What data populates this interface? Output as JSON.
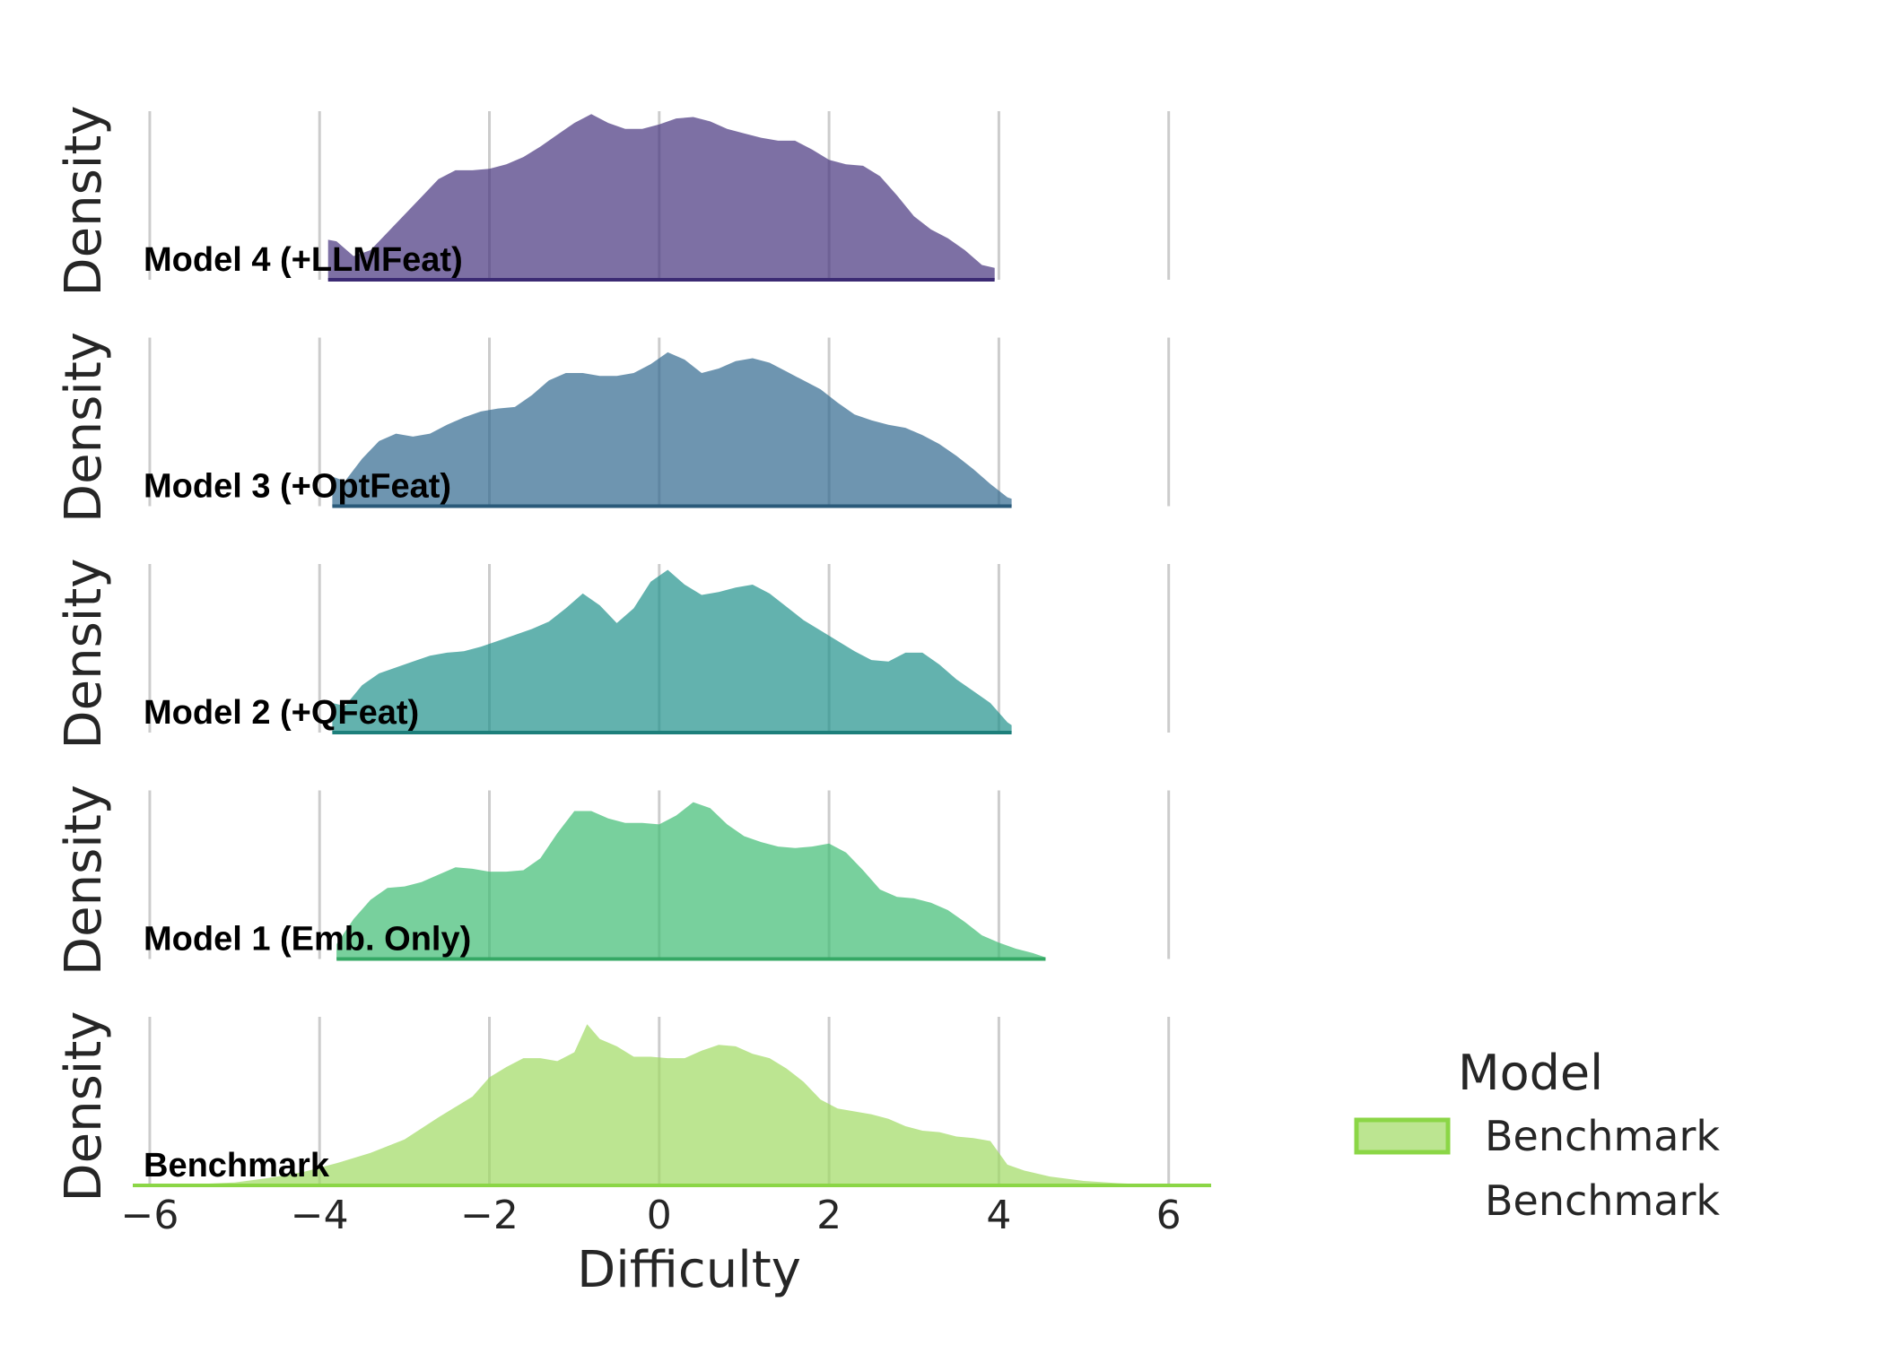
{
  "chart_data": {
    "type": "area",
    "title": "",
    "xlabel": "Difficulty",
    "ylabel": "Density",
    "xlim": [
      -6.2,
      6.5
    ],
    "xticks": [
      -6,
      -4,
      -2,
      0,
      2,
      4,
      6
    ],
    "xtick_labels": [
      "−6",
      "−4",
      "−2",
      "0",
      "2",
      "4",
      "6"
    ],
    "grid": "vertical",
    "legend": {
      "title": "Model",
      "placement": "right",
      "entries": [
        {
          "label": "Benchmark",
          "swatch": true
        },
        {
          "label": "Benchmark",
          "swatch": false
        }
      ]
    },
    "panels": [
      {
        "label": "Model 4 (+LLMFeat)",
        "fill": "#46337e",
        "edge": "#3b2a73",
        "x": [
          -3.9,
          -3.8,
          -3.6,
          -3.4,
          -3.2,
          -3.0,
          -2.8,
          -2.6,
          -2.4,
          -2.2,
          -2.0,
          -1.8,
          -1.6,
          -1.4,
          -1.2,
          -1.0,
          -0.8,
          -0.6,
          -0.4,
          -0.2,
          0.0,
          0.2,
          0.4,
          0.6,
          0.8,
          1.0,
          1.2,
          1.4,
          1.6,
          1.8,
          2.0,
          2.2,
          2.4,
          2.6,
          2.8,
          3.0,
          3.2,
          3.4,
          3.6,
          3.8,
          3.95
        ],
        "y": [
          0.27,
          0.26,
          0.16,
          0.2,
          0.32,
          0.44,
          0.56,
          0.68,
          0.74,
          0.74,
          0.75,
          0.78,
          0.83,
          0.9,
          0.98,
          1.06,
          1.12,
          1.06,
          1.02,
          1.02,
          1.05,
          1.09,
          1.1,
          1.07,
          1.02,
          0.99,
          0.96,
          0.94,
          0.94,
          0.88,
          0.81,
          0.78,
          0.77,
          0.7,
          0.57,
          0.43,
          0.34,
          0.28,
          0.2,
          0.1,
          0.08
        ]
      },
      {
        "label": "Model 3 (+OptFeat)",
        "fill": "#31688e",
        "edge": "#2a5a7a",
        "x": [
          -3.85,
          -3.7,
          -3.5,
          -3.3,
          -3.1,
          -2.9,
          -2.7,
          -2.5,
          -2.3,
          -2.1,
          -1.9,
          -1.7,
          -1.5,
          -1.3,
          -1.1,
          -0.9,
          -0.7,
          -0.5,
          -0.3,
          -0.1,
          0.1,
          0.3,
          0.5,
          0.7,
          0.9,
          1.1,
          1.3,
          1.5,
          1.7,
          1.9,
          2.1,
          2.3,
          2.5,
          2.7,
          2.9,
          3.1,
          3.3,
          3.5,
          3.7,
          3.9,
          4.1,
          4.15
        ],
        "y": [
          0.2,
          0.17,
          0.32,
          0.44,
          0.49,
          0.47,
          0.49,
          0.55,
          0.6,
          0.64,
          0.66,
          0.67,
          0.75,
          0.85,
          0.9,
          0.9,
          0.88,
          0.88,
          0.9,
          0.96,
          1.04,
          0.99,
          0.9,
          0.93,
          0.98,
          1.0,
          0.97,
          0.91,
          0.85,
          0.79,
          0.7,
          0.62,
          0.58,
          0.55,
          0.53,
          0.48,
          0.42,
          0.34,
          0.25,
          0.15,
          0.06,
          0.05
        ]
      },
      {
        "label": "Model 2 (+QFeat)",
        "fill": "#21918c",
        "edge": "#1d7f7b",
        "x": [
          -3.85,
          -3.7,
          -3.5,
          -3.3,
          -3.1,
          -2.9,
          -2.7,
          -2.5,
          -2.3,
          -2.1,
          -1.9,
          -1.7,
          -1.5,
          -1.3,
          -1.1,
          -0.9,
          -0.7,
          -0.5,
          -0.3,
          -0.1,
          0.1,
          0.3,
          0.5,
          0.7,
          0.9,
          1.1,
          1.3,
          1.5,
          1.7,
          1.9,
          2.1,
          2.3,
          2.5,
          2.7,
          2.9,
          3.1,
          3.3,
          3.5,
          3.7,
          3.9,
          4.1,
          4.15
        ],
        "y": [
          0.2,
          0.18,
          0.32,
          0.4,
          0.44,
          0.48,
          0.52,
          0.54,
          0.55,
          0.58,
          0.62,
          0.66,
          0.7,
          0.75,
          0.84,
          0.94,
          0.86,
          0.74,
          0.84,
          1.02,
          1.1,
          1.0,
          0.93,
          0.95,
          0.98,
          1.0,
          0.94,
          0.85,
          0.76,
          0.69,
          0.62,
          0.55,
          0.49,
          0.48,
          0.54,
          0.54,
          0.46,
          0.36,
          0.28,
          0.2,
          0.07,
          0.05
        ]
      },
      {
        "label": "Model 1 (Emb. Only)",
        "fill": "#3fbc73",
        "edge": "#35a865",
        "x": [
          -3.8,
          -3.6,
          -3.4,
          -3.2,
          -3.0,
          -2.8,
          -2.6,
          -2.4,
          -2.2,
          -2.0,
          -1.8,
          -1.6,
          -1.4,
          -1.2,
          -1.0,
          -0.8,
          -0.6,
          -0.4,
          -0.2,
          0.0,
          0.2,
          0.4,
          0.6,
          0.8,
          1.0,
          1.2,
          1.4,
          1.6,
          1.8,
          2.0,
          2.2,
          2.4,
          2.6,
          2.8,
          3.0,
          3.2,
          3.4,
          3.6,
          3.8,
          4.0,
          4.2,
          4.4,
          4.55
        ],
        "y": [
          0.1,
          0.27,
          0.4,
          0.48,
          0.49,
          0.52,
          0.57,
          0.62,
          0.61,
          0.59,
          0.59,
          0.6,
          0.68,
          0.85,
          1.0,
          1.0,
          0.95,
          0.92,
          0.92,
          0.91,
          0.97,
          1.06,
          1.02,
          0.91,
          0.83,
          0.79,
          0.76,
          0.75,
          0.76,
          0.78,
          0.72,
          0.6,
          0.47,
          0.42,
          0.41,
          0.38,
          0.33,
          0.25,
          0.16,
          0.11,
          0.07,
          0.04,
          0.01
        ]
      },
      {
        "label": "Benchmark",
        "fill": "#a0da62",
        "edge": "#8bd646",
        "x": [
          -6.2,
          -5.6,
          -5.0,
          -4.6,
          -4.2,
          -3.8,
          -3.4,
          -3.0,
          -2.6,
          -2.4,
          -2.2,
          -2.0,
          -1.8,
          -1.6,
          -1.4,
          -1.2,
          -1.0,
          -0.85,
          -0.7,
          -0.5,
          -0.3,
          -0.1,
          0.1,
          0.3,
          0.5,
          0.7,
          0.9,
          1.1,
          1.3,
          1.5,
          1.7,
          1.9,
          2.1,
          2.3,
          2.5,
          2.7,
          2.9,
          3.1,
          3.3,
          3.5,
          3.7,
          3.9,
          4.1,
          4.3,
          4.6,
          5.0,
          5.4,
          6.0,
          6.5
        ],
        "y": [
          0.0,
          0.004,
          0.02,
          0.05,
          0.09,
          0.15,
          0.22,
          0.31,
          0.46,
          0.53,
          0.6,
          0.73,
          0.8,
          0.86,
          0.86,
          0.84,
          0.9,
          1.09,
          0.99,
          0.94,
          0.87,
          0.87,
          0.86,
          0.86,
          0.91,
          0.95,
          0.94,
          0.89,
          0.86,
          0.79,
          0.7,
          0.58,
          0.52,
          0.5,
          0.48,
          0.45,
          0.4,
          0.37,
          0.36,
          0.33,
          0.32,
          0.3,
          0.14,
          0.1,
          0.06,
          0.03,
          0.015,
          0.0,
          0.0
        ]
      }
    ]
  }
}
